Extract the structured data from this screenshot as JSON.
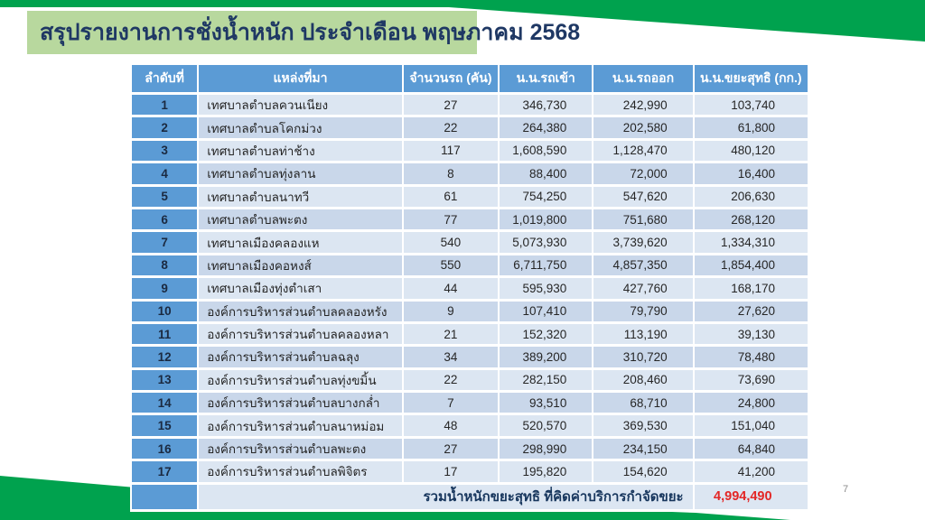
{
  "slide": {
    "title": "สรุปรายงานการชั่งน้ำหนัก ประจำเดือน พฤษภาคม 2568",
    "page_number": "7"
  },
  "colors": {
    "accent_green": "#00a24e",
    "title_bg": "#b8d89e",
    "title_text": "#1f3864",
    "header_bg": "#5b9bd5",
    "row_odd": "#dce6f2",
    "row_even": "#c9d7ea",
    "body_text": "#262626",
    "row_number_text": "#1b2a41",
    "total_label_text": "#17365d",
    "total_red": "#e32726",
    "page_gray": "#8c8c8c"
  },
  "table": {
    "headers": [
      "ลำดับที่",
      "แหล่งที่มา",
      "จำนวนรถ (คัน)",
      "น.น.รถเข้า",
      "น.น.รถออก",
      "น.น.ขยะสุทธิ (กก.)"
    ],
    "rows": [
      [
        "1",
        "เทศบาลตำบลควนเนียง",
        "27",
        "346,730",
        "242,990",
        "103,740"
      ],
      [
        "2",
        "เทศบาลตำบลโคกม่วง",
        "22",
        "264,380",
        "202,580",
        "61,800"
      ],
      [
        "3",
        "เทศบาลตำบลท่าช้าง",
        "117",
        "1,608,590",
        "1,128,470",
        "480,120"
      ],
      [
        "4",
        "เทศบาลตำบลทุ่งลาน",
        "8",
        "88,400",
        "72,000",
        "16,400"
      ],
      [
        "5",
        "เทศบาลตำบลนาทวี",
        "61",
        "754,250",
        "547,620",
        "206,630"
      ],
      [
        "6",
        "เทศบาลตำบลพะตง",
        "77",
        "1,019,800",
        "751,680",
        "268,120"
      ],
      [
        "7",
        "เทศบาลเมืองคลองแห",
        "540",
        "5,073,930",
        "3,739,620",
        "1,334,310"
      ],
      [
        "8",
        "เทศบาลเมืองคอหงส์",
        "550",
        "6,711,750",
        "4,857,350",
        "1,854,400"
      ],
      [
        "9",
        "เทศบาลเมืองทุ่งตำเสา",
        "44",
        "595,930",
        "427,760",
        "168,170"
      ],
      [
        "10",
        "องค์การบริหารส่วนตำบลคลองหรัง",
        "9",
        "107,410",
        "79,790",
        "27,620"
      ],
      [
        "11",
        "องค์การบริหารส่วนตำบลคลองหลา",
        "21",
        "152,320",
        "113,190",
        "39,130"
      ],
      [
        "12",
        "องค์การบริหารส่วนตำบลฉลุง",
        "34",
        "389,200",
        "310,720",
        "78,480"
      ],
      [
        "13",
        "องค์การบริหารส่วนตำบลทุ่งขมิ้น",
        "22",
        "282,150",
        "208,460",
        "73,690"
      ],
      [
        "14",
        "องค์การบริหารส่วนตำบลบางกล่ำ",
        "7",
        "93,510",
        "68,710",
        "24,800"
      ],
      [
        "15",
        "องค์การบริหารส่วนตำบลนาหม่อม",
        "48",
        "520,570",
        "369,530",
        "151,040"
      ],
      [
        "16",
        "องค์การบริหารส่วนตำบลพะตง",
        "27",
        "298,990",
        "234,150",
        "64,840"
      ],
      [
        "17",
        "องค์การบริหารส่วนตำบลพิจิตร",
        "17",
        "195,820",
        "154,620",
        "41,200"
      ]
    ],
    "total_label": "รวมน้ำหนักขยะสุทธิ ที่คิดค่าบริการกำจัดขยะ",
    "total_value": "4,994,490"
  }
}
